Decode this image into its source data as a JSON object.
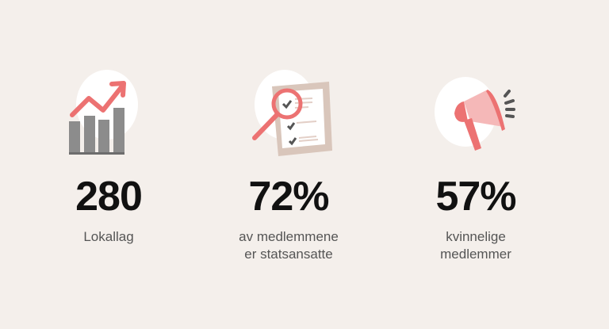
{
  "stats": [
    {
      "value": "280",
      "label_line1": "Lokallag",
      "label_line2": "",
      "icon": "growth-chart-icon"
    },
    {
      "value": "72%",
      "label_line1": "av medlemmene",
      "label_line2": "er statsansatte",
      "icon": "checklist-magnifier-icon"
    },
    {
      "value": "57%",
      "label_line1": "kvinnelige",
      "label_line2": "medlemmer",
      "icon": "megaphone-icon"
    }
  ],
  "colors": {
    "accent": "#ec7272",
    "accent_light": "#f5b8b8",
    "gray": "#8c8c8c",
    "paper": "#d9c6bb",
    "background": "#f4efeb"
  }
}
